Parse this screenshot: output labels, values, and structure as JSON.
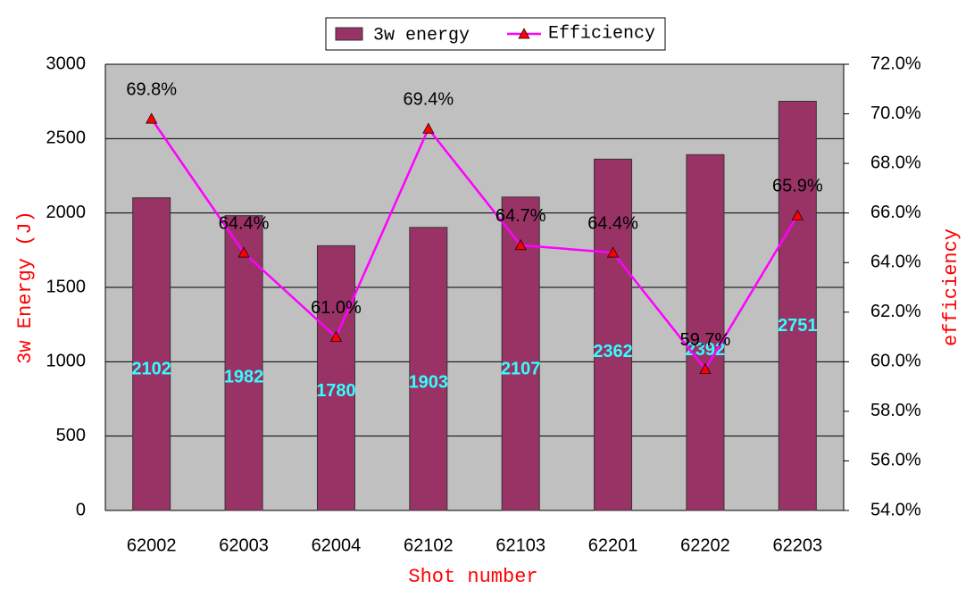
{
  "chart_data": {
    "type": "bar",
    "x_label": "Shot number",
    "y_label": "3w Energy (J)",
    "y2_label": "efficiency",
    "categories": [
      "62002",
      "62003",
      "62004",
      "62102",
      "62103",
      "62201",
      "62202",
      "62203"
    ],
    "series": [
      {
        "name": "3w energy",
        "type": "bar",
        "color": "#993366",
        "label_color": "#33ffff",
        "values": [
          2102,
          1982,
          1780,
          1903,
          2107,
          2362,
          2392,
          2751
        ]
      },
      {
        "name": "Efficiency",
        "type": "line",
        "axis": "y2",
        "color": "#ff00ff",
        "marker_color": "#ff0000",
        "values": [
          69.8,
          64.4,
          61.0,
          69.4,
          64.7,
          64.4,
          59.7,
          65.9
        ],
        "value_labels": [
          "69.8%",
          "64.4%",
          "61.0%",
          "69.4%",
          "64.7%",
          "64.4%",
          "59.7%",
          "65.9%"
        ]
      }
    ],
    "ylim": [
      0,
      3000
    ],
    "yticks": [
      0,
      500,
      1000,
      1500,
      2000,
      2500,
      3000
    ],
    "y2lim": [
      54,
      72
    ],
    "y2ticks": [
      {
        "value": 54,
        "label": "54.0%"
      },
      {
        "value": 56,
        "label": "56.0%"
      },
      {
        "value": 58,
        "label": "58.0%"
      },
      {
        "value": 60,
        "label": "60.0%"
      },
      {
        "value": 62,
        "label": "62.0%"
      },
      {
        "value": 64,
        "label": "64.0%"
      },
      {
        "value": 66,
        "label": "66.0%"
      },
      {
        "value": 68,
        "label": "68.0%"
      },
      {
        "value": 70,
        "label": "70.0%"
      },
      {
        "value": 72,
        "label": "72.0%"
      }
    ],
    "grid": true,
    "legend": "top",
    "background": "#c0c0c0"
  }
}
